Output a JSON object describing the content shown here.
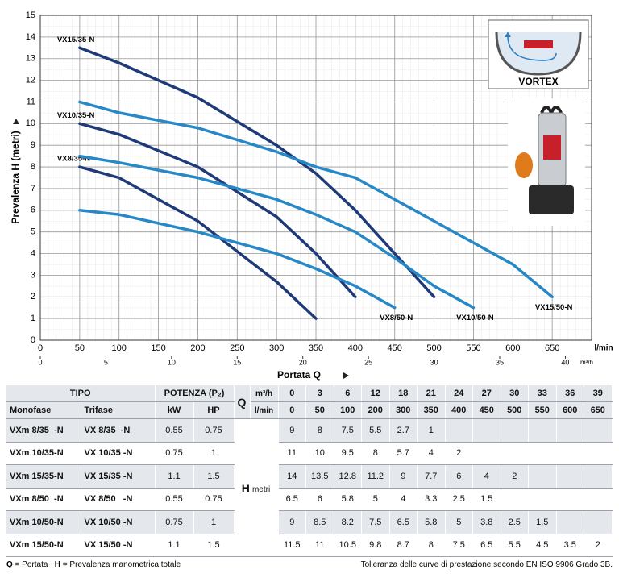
{
  "chart_data": {
    "type": "line",
    "ylabel": "Prevalenza H (metri)",
    "xlabel": "Portata Q",
    "x_unit": "l/min",
    "x2_unit": "m³/h",
    "xlim": [
      0,
      700
    ],
    "xticks": [
      0,
      50,
      100,
      150,
      200,
      250,
      300,
      350,
      400,
      450,
      500,
      550,
      600,
      650
    ],
    "x2lim": [
      0,
      42
    ],
    "x2ticks": [
      0,
      5,
      10,
      15,
      20,
      25,
      30,
      35,
      40
    ],
    "ylim": [
      0,
      15
    ],
    "yticks": [
      0,
      1,
      2,
      3,
      4,
      5,
      6,
      7,
      8,
      9,
      10,
      11,
      12,
      13,
      14,
      15
    ],
    "grid": true,
    "series": [
      {
        "name": "VX15/35-N",
        "color": "#1e3a78",
        "x": [
          50,
          100,
          200,
          300,
          350,
          400,
          450,
          500
        ],
        "values": [
          13.5,
          12.8,
          11.2,
          9,
          7.7,
          6,
          4,
          2
        ]
      },
      {
        "name": "VX10/35-N",
        "color": "#1e3a78",
        "x": [
          50,
          100,
          200,
          300,
          350,
          400
        ],
        "values": [
          10,
          9.5,
          8,
          5.7,
          4,
          2
        ]
      },
      {
        "name": "VX8/35-N",
        "color": "#1e3a78",
        "x": [
          50,
          100,
          200,
          300,
          350
        ],
        "values": [
          8,
          7.5,
          5.5,
          2.7,
          1
        ]
      },
      {
        "name": "VX8/50-N",
        "color": "#2688c6",
        "x": [
          50,
          100,
          200,
          300,
          350,
          400,
          450
        ],
        "values": [
          6,
          5.8,
          5,
          4,
          3.3,
          2.5,
          1.5
        ]
      },
      {
        "name": "VX10/50-N",
        "color": "#2688c6",
        "x": [
          50,
          100,
          200,
          300,
          350,
          400,
          450,
          500,
          550
        ],
        "values": [
          8.5,
          8.2,
          7.5,
          6.5,
          5.8,
          5,
          3.8,
          2.5,
          1.5
        ]
      },
      {
        "name": "VX15/50-N",
        "color": "#2688c6",
        "x": [
          50,
          100,
          200,
          300,
          350,
          400,
          450,
          500,
          550,
          600,
          650
        ],
        "values": [
          11,
          10.5,
          9.8,
          8.7,
          8,
          7.5,
          6.5,
          5.5,
          4.5,
          3.5,
          2
        ]
      }
    ]
  },
  "figure": {
    "vortex_label": "VORTEX"
  },
  "table": {
    "header": {
      "tipo": "TIPO",
      "potenza": "POTENZA (P₂)",
      "q": "Q",
      "q_unit_m3h": "m³/h",
      "q_unit_lmin": "l/min",
      "monofase": "Monofase",
      "trifase": "Trifase",
      "kw": "kW",
      "hp": "HP",
      "h": "H",
      "h_unit": "metri"
    },
    "q_m3h": [
      0,
      3,
      6,
      12,
      18,
      21,
      24,
      27,
      30,
      33,
      36,
      39
    ],
    "q_lmin": [
      0,
      50,
      100,
      200,
      300,
      350,
      400,
      450,
      500,
      550,
      600,
      650
    ],
    "rows": [
      {
        "monofase": "VXm 8/35  -N",
        "trifase": "VX 8/35  -N",
        "kw": 0.55,
        "hp": 0.75,
        "h": [
          9,
          8,
          7.5,
          5.5,
          2.7,
          1
        ]
      },
      {
        "monofase": "VXm 10/35-N",
        "trifase": "VX 10/35 -N",
        "kw": 0.75,
        "hp": 1,
        "h": [
          11,
          10,
          9.5,
          8,
          5.7,
          4,
          2
        ]
      },
      {
        "monofase": "VXm 15/35-N",
        "trifase": "VX 15/35 -N",
        "kw": 1.1,
        "hp": 1.5,
        "h": [
          14,
          13.5,
          12.8,
          11.2,
          9,
          7.7,
          6,
          4,
          2
        ]
      },
      {
        "monofase": "VXm 8/50  -N",
        "trifase": "VX 8/50   -N",
        "kw": 0.55,
        "hp": 0.75,
        "h": [
          6.5,
          6,
          5.8,
          5,
          4,
          3.3,
          2.5,
          1.5
        ]
      },
      {
        "monofase": "VXm 10/50-N",
        "trifase": "VX 10/50 -N",
        "kw": 0.75,
        "hp": 1,
        "h": [
          9,
          8.5,
          8.2,
          7.5,
          6.5,
          5.8,
          5,
          3.8,
          2.5,
          1.5
        ]
      },
      {
        "monofase": "VXm 15/50-N",
        "trifase": "VX 15/50 -N",
        "kw": 1.1,
        "hp": 1.5,
        "h": [
          11.5,
          11,
          10.5,
          9.8,
          8.7,
          8,
          7.5,
          6.5,
          5.5,
          4.5,
          3.5,
          2
        ]
      }
    ]
  },
  "footer": {
    "q": "Q",
    "q_text": "= Portata",
    "h": "H",
    "h_text": "= Prevalenza manometrica totale",
    "note": "Tolleranza delle curve di prestazione secondo EN ISO 9906 Grado 3B."
  }
}
